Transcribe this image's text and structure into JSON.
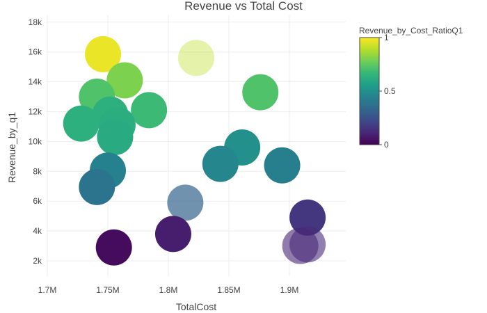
{
  "chart_data": {
    "type": "scatter",
    "title": "Revenue vs Total Cost",
    "xlabel": "TotalCost",
    "ylabel": "Revenue_by_q1",
    "xlim": [
      1700000,
      1930000
    ],
    "ylim": [
      1000000,
      18400000
    ],
    "xticks": [
      {
        "value": 1700000,
        "label": "1.7M"
      },
      {
        "value": 1750000,
        "label": "1.75M"
      },
      {
        "value": 1800000,
        "label": "1.8M"
      },
      {
        "value": 1850000,
        "label": "1.85M"
      },
      {
        "value": 1900000,
        "label": "1.9M"
      }
    ],
    "yticks": [
      {
        "value": 2000,
        "label": "2k"
      },
      {
        "value": 4000,
        "label": "4k"
      },
      {
        "value": 6000,
        "label": "6k"
      },
      {
        "value": 8000,
        "label": "8k"
      },
      {
        "value": 10000,
        "label": "10k"
      },
      {
        "value": 12000,
        "label": "12k"
      },
      {
        "value": 14000,
        "label": "14k"
      },
      {
        "value": 16000,
        "label": "16k"
      },
      {
        "value": 18000,
        "label": "18k"
      }
    ],
    "grid": true,
    "colorbar": {
      "title": "Revenue_by_Cost_RatioQ1",
      "range": [
        0,
        1
      ],
      "colorscale": [
        "#440154",
        "#482878",
        "#3e4989",
        "#31688e",
        "#26828e",
        "#1f9e89",
        "#35b779",
        "#6ece58",
        "#b5de2b",
        "#fde725"
      ],
      "ticks": [
        {
          "value": 0,
          "label": "0"
        },
        {
          "value": 0.5,
          "label": "0.5"
        },
        {
          "value": 1,
          "label": "1"
        }
      ]
    },
    "points": [
      {
        "x": 1746000,
        "y": 15850,
        "c": 0.97,
        "opacity": 1
      },
      {
        "x": 1823000,
        "y": 15600,
        "c": 0.9,
        "opacity": 0.4
      },
      {
        "x": 1764000,
        "y": 14100,
        "c": 0.8,
        "opacity": 1
      },
      {
        "x": 1741000,
        "y": 13000,
        "c": 0.72,
        "opacity": 1
      },
      {
        "x": 1876000,
        "y": 13300,
        "c": 0.72,
        "opacity": 1
      },
      {
        "x": 1784000,
        "y": 12100,
        "c": 0.68,
        "opacity": 1
      },
      {
        "x": 1728000,
        "y": 11200,
        "c": 0.63,
        "opacity": 1
      },
      {
        "x": 1752000,
        "y": 11800,
        "c": 0.63,
        "opacity": 1
      },
      {
        "x": 1758000,
        "y": 11100,
        "c": 0.62,
        "opacity": 1
      },
      {
        "x": 1756000,
        "y": 10300,
        "c": 0.61,
        "opacity": 1
      },
      {
        "x": 1861000,
        "y": 9600,
        "c": 0.5,
        "opacity": 1
      },
      {
        "x": 1843000,
        "y": 8500,
        "c": 0.46,
        "opacity": 1
      },
      {
        "x": 1894000,
        "y": 8400,
        "c": 0.43,
        "opacity": 1
      },
      {
        "x": 1750000,
        "y": 8050,
        "c": 0.44,
        "opacity": 1
      },
      {
        "x": 1741000,
        "y": 6950,
        "c": 0.38,
        "opacity": 1
      },
      {
        "x": 1814000,
        "y": 5900,
        "c": 0.32,
        "opacity": 0.7
      },
      {
        "x": 1915000,
        "y": 4900,
        "c": 0.16,
        "opacity": 1
      },
      {
        "x": 1804000,
        "y": 3800,
        "c": 0.08,
        "opacity": 1
      },
      {
        "x": 1909000,
        "y": 3000,
        "c": 0.1,
        "opacity": 0.6
      },
      {
        "x": 1915000,
        "y": 3100,
        "c": 0.12,
        "opacity": 0.6
      },
      {
        "x": 1755000,
        "y": 2900,
        "c": 0.03,
        "opacity": 1
      }
    ]
  }
}
